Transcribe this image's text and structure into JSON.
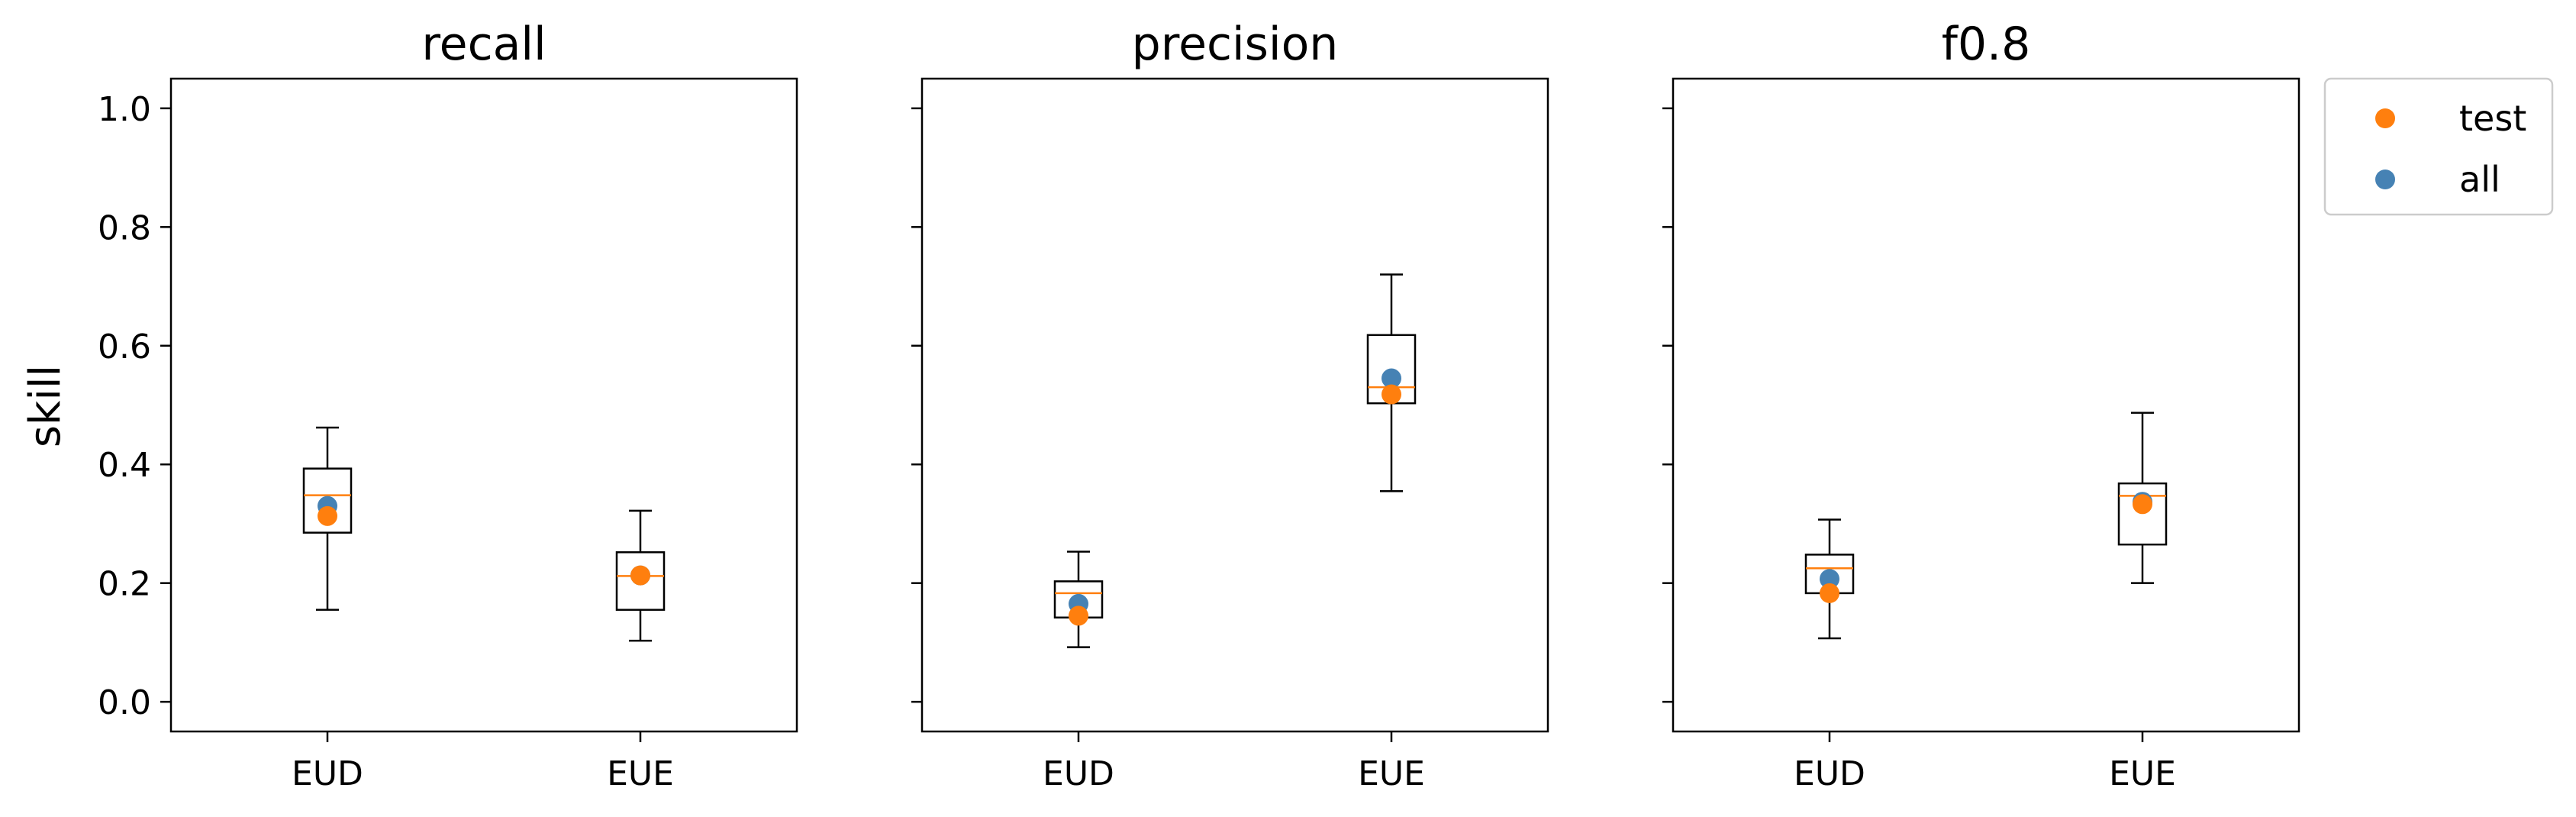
{
  "figure": {
    "ylabel": "skill",
    "colors": {
      "median": "#ff7f0e",
      "test": "#ff7f0e",
      "all": "#4682b4",
      "box": "#000000"
    }
  },
  "legend": {
    "placement": "outside upper right",
    "entries": [
      {
        "label": "test",
        "color": "#ff7f0e"
      },
      {
        "label": "all",
        "color": "#4682b4"
      }
    ]
  },
  "chart_data": [
    {
      "type": "boxplot",
      "title": "recall",
      "categories": [
        "EUD",
        "EUE"
      ],
      "ylim": [
        -0.05,
        1.05
      ],
      "yticks": [
        "0.0",
        "0.2",
        "0.4",
        "0.6",
        "0.8",
        "1.0"
      ],
      "grid": false,
      "boxes": [
        {
          "category": "EUD",
          "whisker_low": 0.155,
          "q1": 0.285,
          "median": 0.348,
          "q3": 0.393,
          "whisker_high": 0.462,
          "test": 0.313,
          "all": 0.33
        },
        {
          "category": "EUE",
          "whisker_low": 0.103,
          "q1": 0.155,
          "median": 0.212,
          "q3": 0.252,
          "whisker_high": 0.322,
          "test": 0.213,
          "all": 0.213
        }
      ]
    },
    {
      "type": "boxplot",
      "title": "precision",
      "categories": [
        "EUD",
        "EUE"
      ],
      "ylim": [
        -0.05,
        1.05
      ],
      "yticks": [
        "0.0",
        "0.2",
        "0.4",
        "0.6",
        "0.8",
        "1.0"
      ],
      "grid": false,
      "boxes": [
        {
          "category": "EUD",
          "whisker_low": 0.092,
          "q1": 0.142,
          "median": 0.183,
          "q3": 0.203,
          "whisker_high": 0.253,
          "test": 0.145,
          "all": 0.165
        },
        {
          "category": "EUE",
          "whisker_low": 0.355,
          "q1": 0.503,
          "median": 0.53,
          "q3": 0.618,
          "whisker_high": 0.72,
          "test": 0.518,
          "all": 0.545
        }
      ]
    },
    {
      "type": "boxplot",
      "title": "f0.8",
      "categories": [
        "EUD",
        "EUE"
      ],
      "ylim": [
        -0.05,
        1.05
      ],
      "yticks": [
        "0.0",
        "0.2",
        "0.4",
        "0.6",
        "0.8",
        "1.0"
      ],
      "grid": false,
      "boxes": [
        {
          "category": "EUD",
          "whisker_low": 0.107,
          "q1": 0.183,
          "median": 0.225,
          "q3": 0.248,
          "whisker_high": 0.307,
          "test": 0.183,
          "all": 0.207
        },
        {
          "category": "EUE",
          "whisker_low": 0.2,
          "q1": 0.265,
          "median": 0.347,
          "q3": 0.368,
          "whisker_high": 0.487,
          "test": 0.333,
          "all": 0.337
        }
      ]
    }
  ]
}
